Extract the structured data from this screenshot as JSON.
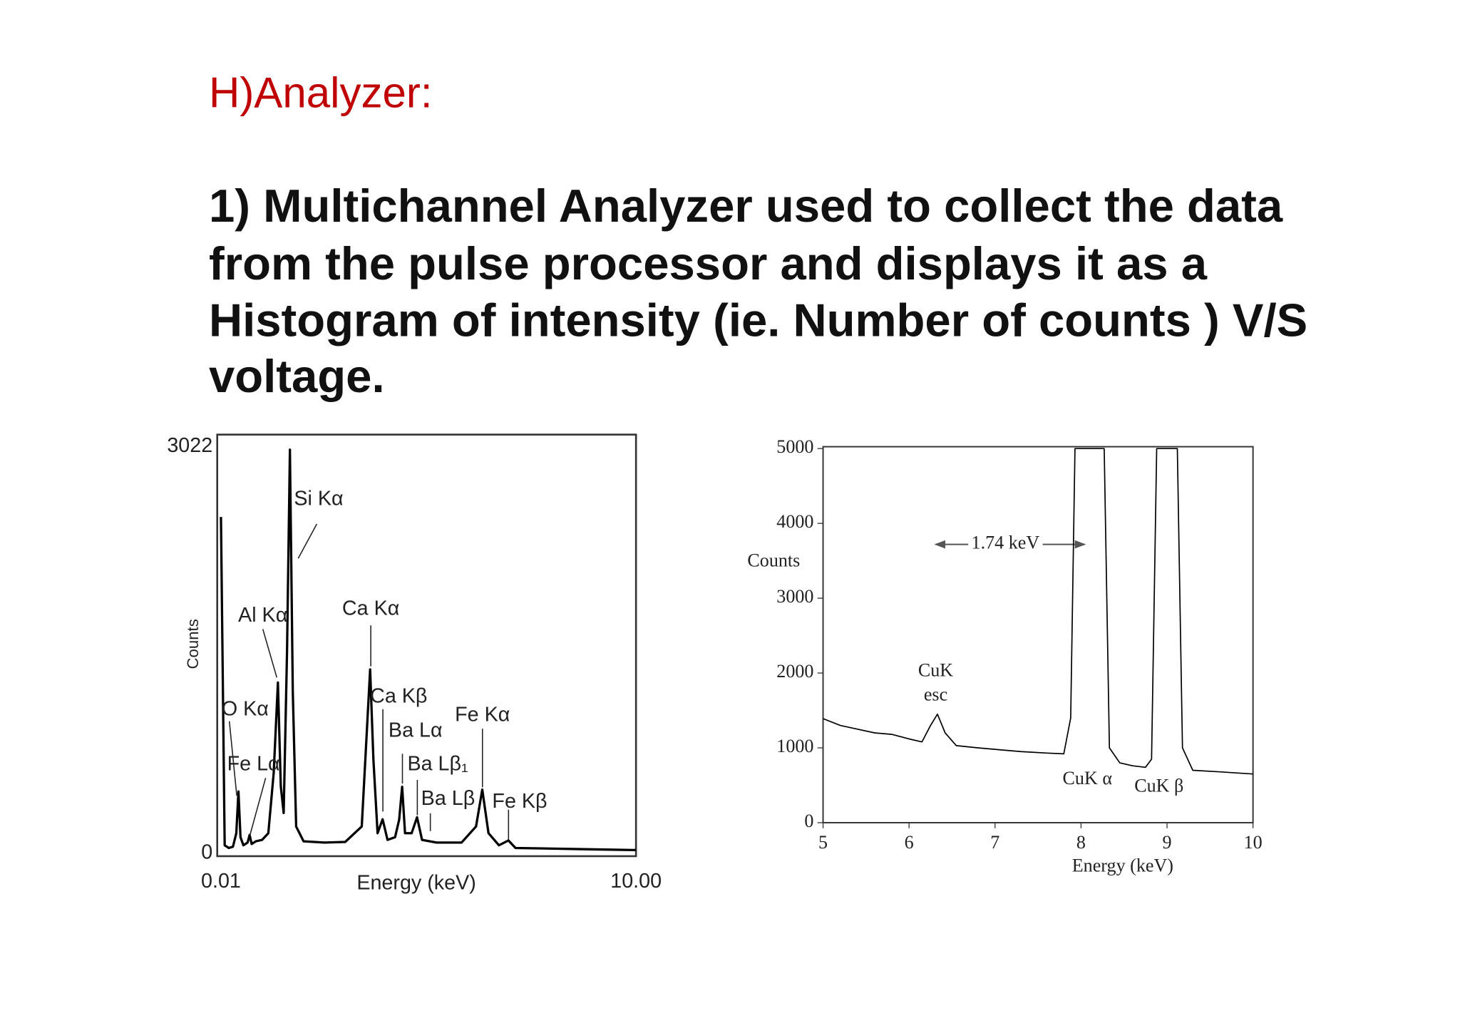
{
  "header": {
    "title": "H)Analyzer:"
  },
  "body": {
    "lines": [
      "1) Multichannel Analyzer used to collect the data",
      "from the pulse processor and displays it as a",
      "Histogram of intensity (ie. Number of counts ) V/S",
      "voltage."
    ]
  },
  "chart_data": [
    {
      "type": "line",
      "xlabel": "Energy (keV)",
      "ylabel": "Counts",
      "color": "#000000",
      "xlim": [
        0.01,
        10
      ],
      "xticks": [
        {
          "value": 0.01,
          "label": "0.01"
        },
        {
          "value": 10,
          "label": "10.00"
        }
      ],
      "ylim": [
        0,
        3022
      ],
      "yticks": [
        0,
        3022
      ],
      "grid": false,
      "x": [
        0.01,
        0.1,
        0.2,
        0.3,
        0.38,
        0.43,
        0.48,
        0.55,
        0.65,
        0.7,
        0.75,
        0.85,
        1.0,
        1.15,
        1.28,
        1.38,
        1.45,
        1.52,
        1.6,
        1.67,
        1.74,
        1.82,
        2.0,
        2.5,
        3.0,
        3.4,
        3.52,
        3.6,
        3.68,
        3.78,
        3.9,
        4.02,
        4.2,
        4.3,
        4.37,
        4.44,
        4.6,
        4.73,
        4.85,
        5.2,
        5.8,
        6.15,
        6.3,
        6.45,
        6.7,
        6.93,
        7.1,
        8,
        9,
        10
      ],
      "values": [
        2500,
        60,
        40,
        50,
        150,
        460,
        120,
        60,
        80,
        137,
        70,
        90,
        100,
        150,
        600,
        1270,
        500,
        300,
        1500,
        3000,
        1200,
        200,
        90,
        80,
        85,
        200,
        900,
        1367,
        700,
        150,
        254,
        100,
        120,
        250,
        495,
        150,
        150,
        268,
        100,
        80,
        80,
        200,
        474,
        150,
        60,
        96,
        40,
        35,
        30,
        25
      ],
      "annotations": [
        "Si Kα",
        "Al Kα",
        "O Kα",
        "Fe Lα",
        "Ca Kα",
        "Ca Kβ",
        "Ba Lα",
        "Ba Lβ₁",
        "Ba Lβ",
        "Fe Kα",
        "Fe Kβ"
      ]
    },
    {
      "type": "line",
      "xlabel": "Energy (keV)",
      "ylabel": "Counts",
      "color": "#000000",
      "xlim": [
        5,
        10
      ],
      "xticks": [
        5,
        6,
        7,
        8,
        9,
        10
      ],
      "ylim": [
        0,
        5000
      ],
      "yticks": [
        0,
        1000,
        2000,
        3000,
        4000,
        5000
      ],
      "grid": false,
      "x": [
        5.0,
        5.2,
        5.4,
        5.6,
        5.8,
        6.0,
        6.15,
        6.25,
        6.33,
        6.42,
        6.55,
        6.8,
        7.0,
        7.3,
        7.6,
        7.8,
        7.88,
        7.93,
        8.27,
        8.33,
        8.45,
        8.6,
        8.75,
        8.82,
        8.88,
        9.12,
        9.18,
        9.3,
        9.6,
        10
      ],
      "values": [
        1390,
        1300,
        1250,
        1200,
        1180,
        1120,
        1080,
        1300,
        1450,
        1200,
        1030,
        1000,
        980,
        950,
        930,
        920,
        1400,
        5000,
        5000,
        1000,
        800,
        760,
        740,
        850,
        5000,
        5000,
        1000,
        700,
        680,
        650
      ],
      "annotations": [
        "1.74 keV",
        "CuK",
        "esc",
        "CuK α",
        "CuK β"
      ]
    }
  ]
}
